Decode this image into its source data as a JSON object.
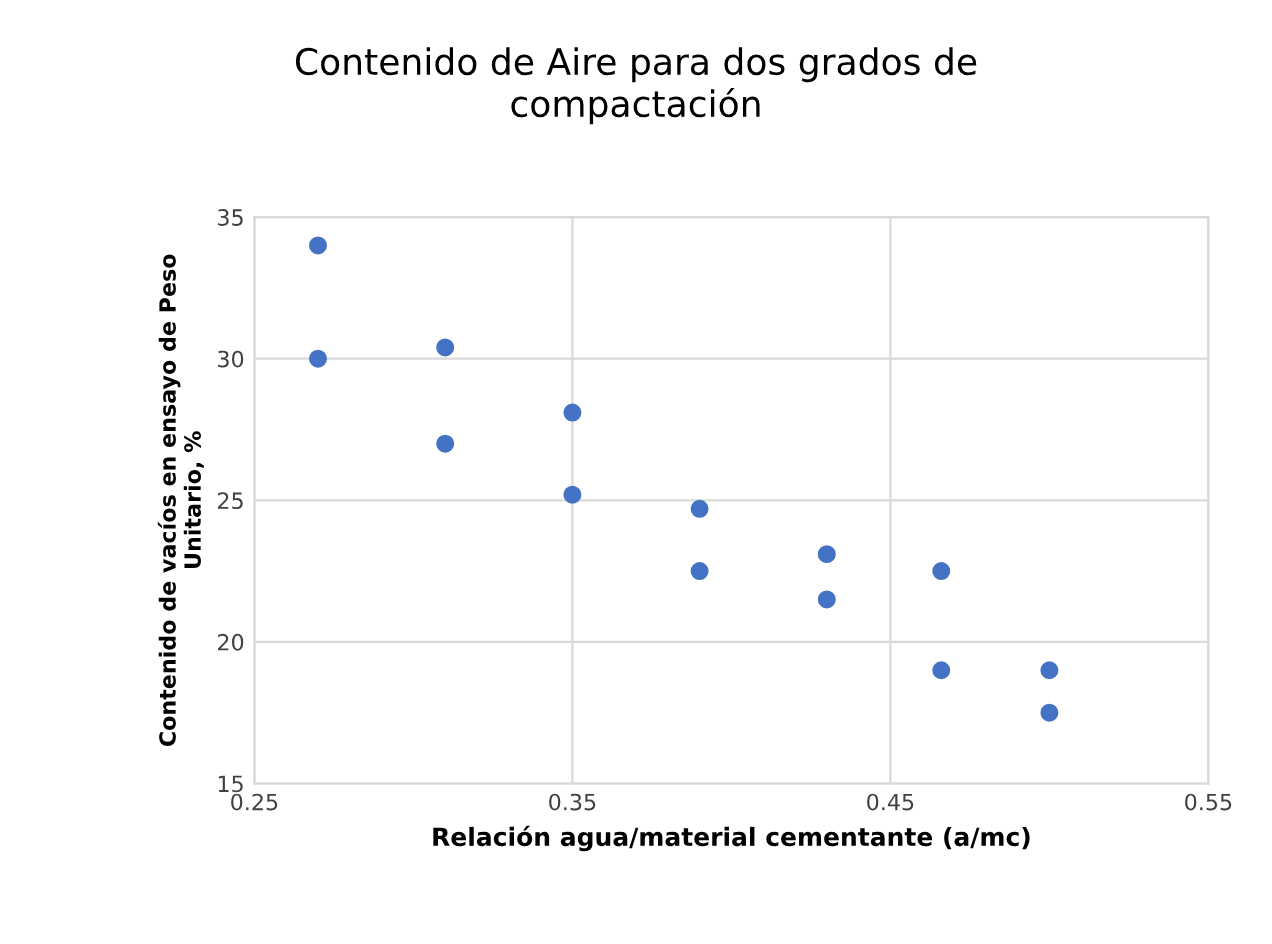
{
  "chart_data": {
    "type": "scatter",
    "title": "Contenido de Aire para dos grados de\ncompactación",
    "xlabel": "Relación agua/material cementante (a/mc)",
    "ylabel": "Contenido de vacíos en ensayo de Peso\nUnitario, %",
    "series": [
      {
        "color": "#4472c4",
        "x": [
          0.27,
          0.27,
          0.31,
          0.31,
          0.35,
          0.35,
          0.39,
          0.39,
          0.43,
          0.43,
          0.466,
          0.466,
          0.5,
          0.5
        ],
        "values": [
          34,
          30,
          30.4,
          27,
          28.1,
          25.2,
          24.7,
          22.5,
          23.1,
          21.5,
          22.5,
          19,
          19,
          17.5
        ]
      }
    ],
    "xlim": [
      0.25,
      0.55
    ],
    "xticks": [
      0.25,
      0.35,
      0.45,
      0.55
    ],
    "ylim": [
      15,
      35
    ],
    "yticks": [
      15,
      20,
      25,
      30,
      35
    ],
    "grid": true,
    "marker": "circle"
  }
}
